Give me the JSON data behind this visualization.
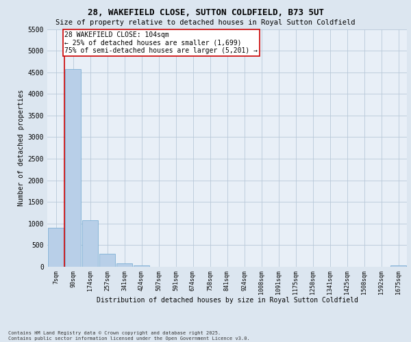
{
  "title": "28, WAKEFIELD CLOSE, SUTTON COLDFIELD, B73 5UT",
  "subtitle": "Size of property relative to detached houses in Royal Sutton Coldfield",
  "xlabel": "Distribution of detached houses by size in Royal Sutton Coldfield",
  "ylabel": "Number of detached properties",
  "categories": [
    "7sqm",
    "90sqm",
    "174sqm",
    "257sqm",
    "341sqm",
    "424sqm",
    "507sqm",
    "591sqm",
    "674sqm",
    "758sqm",
    "841sqm",
    "924sqm",
    "1008sqm",
    "1091sqm",
    "1175sqm",
    "1258sqm",
    "1341sqm",
    "1425sqm",
    "1508sqm",
    "1592sqm",
    "1675sqm"
  ],
  "values": [
    900,
    4570,
    1080,
    295,
    75,
    35,
    5,
    0,
    0,
    0,
    0,
    0,
    0,
    0,
    0,
    0,
    0,
    0,
    0,
    0,
    30
  ],
  "bar_color": "#b8cfe8",
  "bar_edge_color": "#7dafd4",
  "vline_color": "#cc0000",
  "annotation_text": "28 WAKEFIELD CLOSE: 104sqm\n← 25% of detached houses are smaller (1,699)\n75% of semi-detached houses are larger (5,201) →",
  "annotation_box_color": "#ffffff",
  "annotation_box_edge_color": "#cc0000",
  "ylim": [
    0,
    5500
  ],
  "yticks": [
    0,
    500,
    1000,
    1500,
    2000,
    2500,
    3000,
    3500,
    4000,
    4500,
    5000,
    5500
  ],
  "footer": "Contains HM Land Registry data © Crown copyright and database right 2025.\nContains public sector information licensed under the Open Government Licence v3.0.",
  "bg_color": "#dce6f0",
  "plot_bg_color": "#e8eff7"
}
